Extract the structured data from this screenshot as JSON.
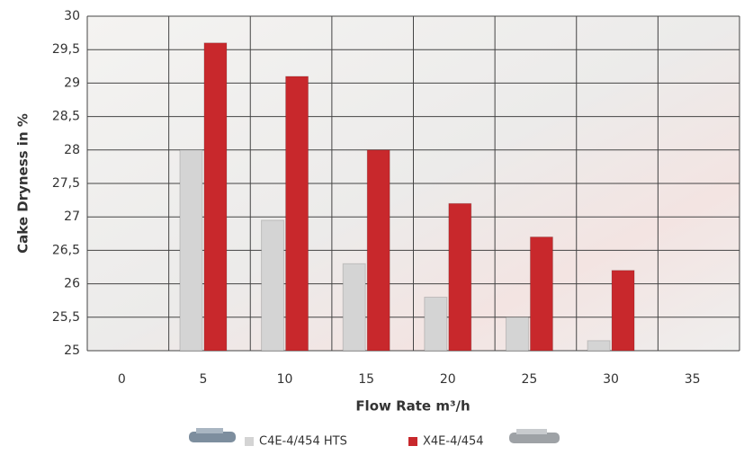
{
  "chart_data": {
    "type": "bar",
    "x_label": "Flow Rate m³/h",
    "y_label": "Cake Dryness in %",
    "categories": [
      "0",
      "5",
      "10",
      "15",
      "20",
      "25",
      "30",
      "35"
    ],
    "series": [
      {
        "name": "C4E-4/454 HTS",
        "color": "#d4d4d4",
        "values": [
          null,
          28,
          26.95,
          26.3,
          25.8,
          25.5,
          25.15,
          null
        ]
      },
      {
        "name": "X4E-4/454",
        "color": "#c8282c",
        "values": [
          null,
          29.6,
          29.1,
          28,
          27.2,
          26.7,
          26.2,
          null
        ]
      }
    ],
    "ylim": [
      25,
      30
    ],
    "yticks": [
      25,
      {
        "value": 25.5,
        "label": "25,5"
      },
      26,
      {
        "value": 26.5,
        "label": "26,5"
      },
      27,
      {
        "value": 27.5,
        "label": "27,5"
      },
      28,
      {
        "value": 28.5,
        "label": "28,5"
      },
      29,
      {
        "value": 29.5,
        "label": "29,5"
      },
      30
    ],
    "grid": true,
    "legend": "bottom"
  }
}
